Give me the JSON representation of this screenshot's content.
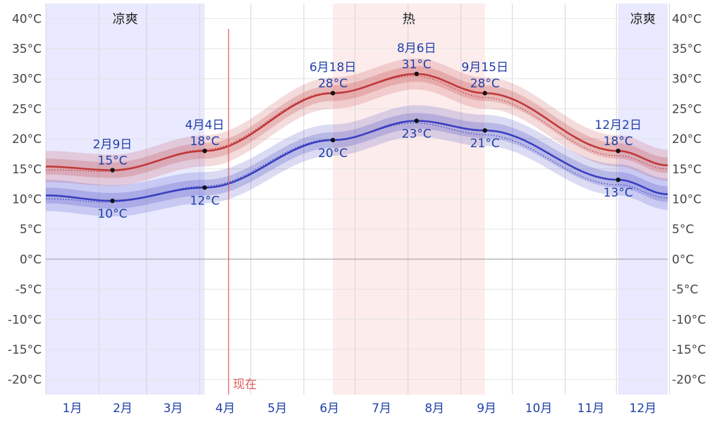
{
  "chart_data": {
    "type": "line",
    "x_unit": "day_of_year",
    "ylim": [
      -22.5,
      42.5
    ],
    "y_ticks": [
      40,
      35,
      30,
      25,
      20,
      15,
      10,
      5,
      0,
      -5,
      -10,
      -15,
      -20
    ],
    "y_tick_labels": [
      "40°C",
      "35°C",
      "30°C",
      "25°C",
      "20°C",
      "15°C",
      "10°C",
      "5°C",
      "0°C",
      "-5°C",
      "-10°C",
      "-15°C",
      "-20°C"
    ],
    "months": [
      "1月",
      "2月",
      "3月",
      "4月",
      "5月",
      "6月",
      "7月",
      "8月",
      "9月",
      "10月",
      "11月",
      "12月"
    ],
    "seasons": [
      {
        "label": "凉爽",
        "start_day": 1,
        "end_day": 94,
        "color": "#e9e9ff"
      },
      {
        "label": "热",
        "start_day": 169,
        "end_day": 258,
        "color": "#fdecec"
      },
      {
        "label": "凉爽",
        "start_day": 336,
        "end_day": 365,
        "color": "#e9e9ff"
      }
    ],
    "now_day": 108,
    "now_label": "现在",
    "series": [
      {
        "name": "high",
        "color": "#c0393b",
        "x": [
          1,
          40,
          94,
          169,
          218,
          258,
          336,
          365
        ],
        "values": [
          15.4,
          14.8,
          18.0,
          27.6,
          30.8,
          27.6,
          18.0,
          15.6
        ]
      },
      {
        "name": "low",
        "color": "#3a3fbf",
        "x": [
          1,
          40,
          94,
          169,
          218,
          258,
          336,
          365
        ],
        "values": [
          10.6,
          9.7,
          11.9,
          19.8,
          23.0,
          21.4,
          13.2,
          10.8
        ]
      }
    ],
    "annotations": [
      {
        "day": 40,
        "temp": 14.8,
        "lines": [
          "2月9日",
          "15°C"
        ],
        "pos": "above"
      },
      {
        "day": 40,
        "temp": 9.7,
        "lines": [
          "10°C"
        ],
        "pos": "below"
      },
      {
        "day": 94,
        "temp": 18.0,
        "lines": [
          "4月4日",
          "18°C"
        ],
        "pos": "above"
      },
      {
        "day": 94,
        "temp": 11.9,
        "lines": [
          "12°C"
        ],
        "pos": "below"
      },
      {
        "day": 169,
        "temp": 27.6,
        "lines": [
          "6月18日",
          "28°C"
        ],
        "pos": "above"
      },
      {
        "day": 169,
        "temp": 19.8,
        "lines": [
          "20°C"
        ],
        "pos": "below"
      },
      {
        "day": 218,
        "temp": 30.8,
        "lines": [
          "8月6日",
          "31°C"
        ],
        "pos": "above"
      },
      {
        "day": 218,
        "temp": 23.0,
        "lines": [
          "23°C"
        ],
        "pos": "below"
      },
      {
        "day": 258,
        "temp": 27.6,
        "lines": [
          "9月15日",
          "28°C"
        ],
        "pos": "above"
      },
      {
        "day": 258,
        "temp": 21.4,
        "lines": [
          "21°C"
        ],
        "pos": "below"
      },
      {
        "day": 336,
        "temp": 18.0,
        "lines": [
          "12月2日",
          "18°C"
        ],
        "pos": "above"
      },
      {
        "day": 336,
        "temp": 13.2,
        "lines": [
          "13°C"
        ],
        "pos": "below"
      }
    ]
  }
}
